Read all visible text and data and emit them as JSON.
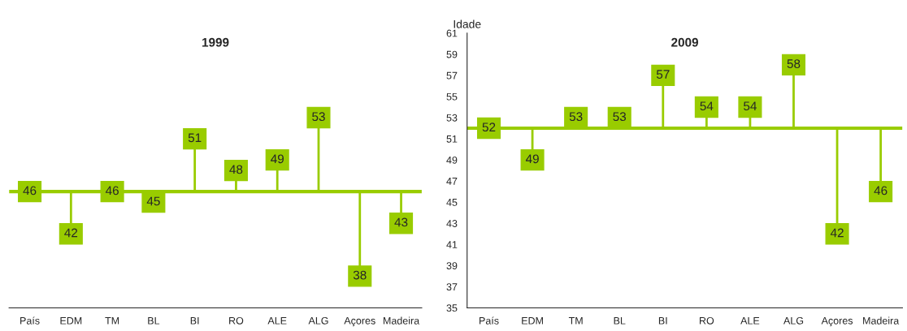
{
  "chart_data": [
    {
      "type": "lollipop",
      "title": "1999",
      "categories": [
        "País",
        "EDM",
        "TM",
        "BL",
        "BI",
        "RO",
        "ALE",
        "ALG",
        "Açores",
        "Madeira"
      ],
      "values": [
        46,
        42,
        46,
        45,
        51,
        48,
        49,
        53,
        38,
        43
      ],
      "color": "#99cc00",
      "ylim": [
        35,
        61
      ],
      "tick_labels": "x",
      "data_labels": true,
      "grid": false,
      "legend": false,
      "ref_lines": [
        {
          "axis": "y",
          "value": 46,
          "color": "#99cc00"
        }
      ]
    },
    {
      "type": "lollipop",
      "title": "2009",
      "ylabel": "Idade",
      "categories": [
        "País",
        "EDM",
        "TM",
        "BL",
        "BI",
        "RO",
        "ALE",
        "ALG",
        "Açores",
        "Madeira"
      ],
      "values": [
        52,
        49,
        53,
        53,
        57,
        54,
        54,
        58,
        42,
        46
      ],
      "color": "#99cc00",
      "ylim": [
        35,
        61
      ],
      "yticks": [
        35,
        37,
        39,
        41,
        43,
        45,
        47,
        49,
        51,
        53,
        55,
        57,
        59,
        61
      ],
      "data_labels": true,
      "grid": false,
      "legend": false,
      "ref_lines": [
        {
          "axis": "y",
          "value": 52,
          "color": "#99cc00"
        }
      ]
    }
  ]
}
